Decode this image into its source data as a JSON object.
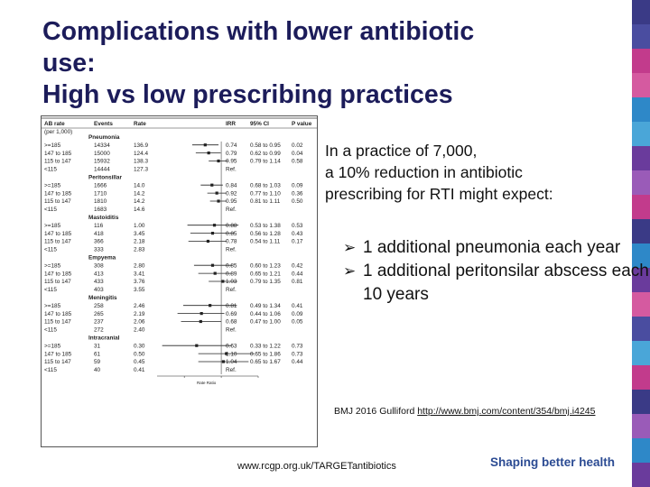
{
  "slide": {
    "title_lines": [
      "Complications with lower antibiotic",
      "use:",
      "High vs low prescribing practices"
    ],
    "body": [
      "In a practice of 7,000,",
      "a 10% reduction in antibiotic",
      "prescribing for RTI might expect:"
    ],
    "bullets": [
      {
        "text": "1 additional pneumonia  each year"
      },
      {
        "text": "1 additional peritonsilar abscess each 10 years"
      }
    ],
    "citation": {
      "prefix": "BMJ 2016 Gulliford ",
      "link": "http://www.bmj.com/content/354/bmj.i4245"
    },
    "footer_url": "www.rcgp.org.uk/TARGETantibiotics",
    "tagline": "Shaping better health",
    "stripe_colors": [
      "#3a3a86",
      "#4a4da0",
      "#c23b8c",
      "#d55aa0",
      "#2e88c8",
      "#4aa6d8",
      "#6a3b9c",
      "#9a5bb8",
      "#c23b8c",
      "#3a3a86",
      "#2e88c8",
      "#6a3b9c",
      "#d55aa0",
      "#4a4da0",
      "#4aa6d8",
      "#c23b8c",
      "#3a3a86",
      "#9a5bb8",
      "#2e88c8",
      "#6a3b9c"
    ]
  },
  "chart_data": {
    "type": "table",
    "headers": [
      "AB rate",
      "Events",
      "Rate",
      "IRR",
      "95% CI",
      "P value"
    ],
    "subheader": "(per 1,000)",
    "axis_label": "Rate Ratio",
    "xlim": [
      0.3,
      2.0
    ],
    "groups": [
      {
        "name": "Pneumonia",
        "rows": [
          {
            "rate_band": ">=185",
            "events": "14334",
            "rate": "136.9",
            "irr": 0.74,
            "irr_label": "0.74",
            "ci": "0.58 to 0.95",
            "lo": 0.58,
            "hi": 0.95,
            "p": "0.02"
          },
          {
            "rate_band": "147 to 185",
            "events": "15000",
            "rate": "124.4",
            "irr": 0.79,
            "irr_label": "0.79",
            "ci": "0.62 to 0.99",
            "lo": 0.62,
            "hi": 0.99,
            "p": "0.04"
          },
          {
            "rate_band": "115 to 147",
            "events": "15932",
            "rate": "138.3",
            "irr": 0.95,
            "irr_label": "0.95",
            "ci": "0.79 to 1.14",
            "lo": 0.79,
            "hi": 1.14,
            "p": "0.58"
          },
          {
            "rate_band": "<115",
            "events": "14444",
            "rate": "127.3",
            "irr": 1.0,
            "irr_label": "Ref.",
            "ci": "",
            "p": ""
          }
        ]
      },
      {
        "name": "Peritonsillar",
        "rows": [
          {
            "rate_band": ">=185",
            "events": "1666",
            "rate": "14.0",
            "irr": 0.84,
            "irr_label": "0.84",
            "ci": "0.68 to 1.03",
            "lo": 0.68,
            "hi": 1.03,
            "p": "0.09"
          },
          {
            "rate_band": "147 to 185",
            "events": "1710",
            "rate": "14.2",
            "irr": 0.92,
            "irr_label": "0.92",
            "ci": "0.77 to 1.10",
            "lo": 0.77,
            "hi": 1.1,
            "p": "0.36"
          },
          {
            "rate_band": "115 to 147",
            "events": "1810",
            "rate": "14.2",
            "irr": 0.95,
            "irr_label": "0.95",
            "ci": "0.81 to 1.11",
            "lo": 0.81,
            "hi": 1.11,
            "p": "0.50"
          },
          {
            "rate_band": "<115",
            "events": "1683",
            "rate": "14.6",
            "irr": 1.0,
            "irr_label": "Ref.",
            "ci": "",
            "p": ""
          }
        ]
      },
      {
        "name": "Mastoiditis",
        "rows": [
          {
            "rate_band": ">=185",
            "events": "116",
            "rate": "1.00",
            "irr": 0.88,
            "irr_label": "0.88",
            "ci": "0.53 to 1.38",
            "lo": 0.53,
            "hi": 1.38,
            "p": "0.53"
          },
          {
            "rate_band": "147 to 185",
            "events": "418",
            "rate": "3.45",
            "irr": 0.85,
            "irr_label": "0.85",
            "ci": "0.56 to 1.28",
            "lo": 0.56,
            "hi": 1.28,
            "p": "0.43"
          },
          {
            "rate_band": "115 to 147",
            "events": "366",
            "rate": "2.18",
            "irr": 0.78,
            "irr_label": "0.78",
            "ci": "0.54 to 1.11",
            "lo": 0.54,
            "hi": 1.11,
            "p": "0.17"
          },
          {
            "rate_band": "<115",
            "events": "333",
            "rate": "2.83",
            "irr": 1.0,
            "irr_label": "Ref.",
            "ci": "",
            "p": ""
          }
        ]
      },
      {
        "name": "Empyema",
        "rows": [
          {
            "rate_band": ">=185",
            "events": "308",
            "rate": "2.80",
            "irr": 0.85,
            "irr_label": "0.85",
            "ci": "0.60 to 1.23",
            "lo": 0.6,
            "hi": 1.23,
            "p": "0.42"
          },
          {
            "rate_band": "147 to 185",
            "events": "413",
            "rate": "3.41",
            "irr": 0.89,
            "irr_label": "0.89",
            "ci": "0.65 to 1.21",
            "lo": 0.65,
            "hi": 1.21,
            "p": "0.44"
          },
          {
            "rate_band": "115 to 147",
            "events": "433",
            "rate": "3.76",
            "irr": 1.03,
            "irr_label": "1.03",
            "ci": "0.79 to 1.35",
            "lo": 0.79,
            "hi": 1.35,
            "p": "0.81"
          },
          {
            "rate_band": "<115",
            "events": "403",
            "rate": "3.55",
            "irr": 1.0,
            "irr_label": "Ref.",
            "ci": "",
            "p": ""
          }
        ]
      },
      {
        "name": "Meningitis",
        "rows": [
          {
            "rate_band": ">=185",
            "events": "258",
            "rate": "2.46",
            "irr": 0.81,
            "irr_label": "0.81",
            "ci": "0.49 to 1.34",
            "lo": 0.49,
            "hi": 1.34,
            "p": "0.41"
          },
          {
            "rate_band": "147 to 185",
            "events": "265",
            "rate": "2.19",
            "irr": 0.69,
            "irr_label": "0.69",
            "ci": "0.44 to 1.06",
            "lo": 0.44,
            "hi": 1.06,
            "p": "0.09"
          },
          {
            "rate_band": "115 to 147",
            "events": "237",
            "rate": "2.06",
            "irr": 0.68,
            "irr_label": "0.68",
            "ci": "0.47 to 1.00",
            "lo": 0.47,
            "hi": 1.0,
            "p": "0.05"
          },
          {
            "rate_band": "<115",
            "events": "272",
            "rate": "2.40",
            "irr": 1.0,
            "irr_label": "Ref.",
            "ci": "",
            "p": ""
          }
        ]
      },
      {
        "name": "Intracranial",
        "rows": [
          {
            "rate_band": ">=185",
            "events": "31",
            "rate": "0.30",
            "irr": 0.63,
            "irr_label": "0.63",
            "ci": "0.33 to 1.22",
            "lo": 0.33,
            "hi": 1.22,
            "p": "0.73"
          },
          {
            "rate_band": "147 to 185",
            "events": "61",
            "rate": "0.50",
            "irr": 1.1,
            "irr_label": "1.10",
            "ci": "0.65 to 1.86",
            "lo": 0.65,
            "hi": 1.86,
            "p": "0.73"
          },
          {
            "rate_band": "115 to 147",
            "events": "59",
            "rate": "0.45",
            "irr": 1.04,
            "irr_label": "1.04",
            "ci": "0.65 to 1.67",
            "lo": 0.65,
            "hi": 1.67,
            "p": "0.44"
          },
          {
            "rate_band": "<115",
            "events": "40",
            "rate": "0.41",
            "irr": 1.0,
            "irr_label": "Ref.",
            "ci": "",
            "p": ""
          }
        ]
      }
    ]
  }
}
